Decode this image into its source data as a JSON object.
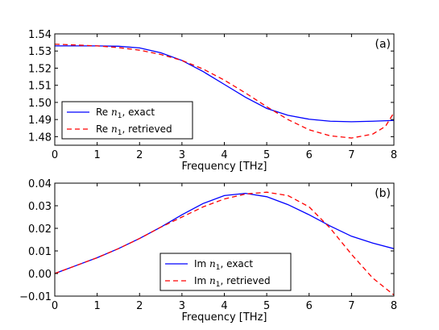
{
  "chart_data": [
    {
      "type": "line",
      "panel_label": "(a)",
      "xlabel": "Frequency [THz]",
      "ylabel": "",
      "xlim": [
        0,
        8
      ],
      "ylim": [
        1.475,
        1.54
      ],
      "xticks": [
        "0",
        "1",
        "2",
        "3",
        "4",
        "5",
        "6",
        "7",
        "8"
      ],
      "yticks": [
        "1.48",
        "1.49",
        "1.50",
        "1.51",
        "1.52",
        "1.53",
        "1.54"
      ],
      "legend_position": "lower-left",
      "grid": false,
      "series": [
        {
          "legend_prefix": "Re ",
          "legend_var": "n",
          "legend_sub": "1",
          "legend_suffix": ", exact",
          "color": "#0000ff",
          "style": "solid",
          "x": [
            0,
            0.5,
            1,
            1.5,
            2,
            2.5,
            3,
            3.5,
            4,
            4.5,
            5,
            5.5,
            6,
            6.5,
            7,
            7.5,
            8
          ],
          "y": [
            1.533,
            1.533,
            1.533,
            1.5328,
            1.5318,
            1.529,
            1.5245,
            1.518,
            1.5105,
            1.503,
            1.4965,
            1.4925,
            1.4902,
            1.489,
            1.4887,
            1.489,
            1.4895
          ]
        },
        {
          "legend_prefix": "Re ",
          "legend_var": "n",
          "legend_sub": "1",
          "legend_suffix": ", retrieved",
          "color": "#ff0000",
          "style": "dashed",
          "x": [
            0,
            0.5,
            1,
            1.5,
            2,
            2.5,
            3,
            3.5,
            4,
            4.5,
            5,
            5.5,
            6,
            6.5,
            7,
            7.5,
            7.8,
            8
          ],
          "y": [
            1.534,
            1.5335,
            1.533,
            1.532,
            1.5305,
            1.528,
            1.5245,
            1.5195,
            1.513,
            1.5055,
            1.4975,
            1.49,
            1.484,
            1.4805,
            1.4792,
            1.4815,
            1.486,
            1.494
          ]
        }
      ]
    },
    {
      "type": "line",
      "panel_label": "(b)",
      "xlabel": "Frequency [THz]",
      "ylabel": "",
      "xlim": [
        0,
        8
      ],
      "ylim": [
        -0.01,
        0.04
      ],
      "xticks": [
        "0",
        "1",
        "2",
        "3",
        "4",
        "5",
        "6",
        "7",
        "8"
      ],
      "yticks": [
        "−0.01",
        "0.00",
        "0.01",
        "0.02",
        "0.03",
        "0.04"
      ],
      "legend_position": "lower-center",
      "grid": false,
      "series": [
        {
          "legend_prefix": "Im ",
          "legend_var": "n",
          "legend_sub": "1",
          "legend_suffix": ", exact",
          "color": "#0000ff",
          "style": "solid",
          "x": [
            0,
            0.5,
            1,
            1.5,
            2,
            2.5,
            3,
            3.5,
            4,
            4.5,
            5,
            5.5,
            6,
            6.5,
            7,
            7.5,
            8
          ],
          "y": [
            0.0,
            0.0035,
            0.007,
            0.011,
            0.0155,
            0.0205,
            0.026,
            0.031,
            0.0345,
            0.0355,
            0.034,
            0.0305,
            0.026,
            0.021,
            0.0165,
            0.0135,
            0.011
          ]
        },
        {
          "legend_prefix": "Im ",
          "legend_var": "n",
          "legend_sub": "1",
          "legend_suffix": ", retrieved",
          "color": "#ff0000",
          "style": "dashed",
          "x": [
            0,
            0.5,
            1,
            1.5,
            2,
            2.5,
            3,
            3.5,
            4,
            4.5,
            5,
            5.5,
            6,
            6.5,
            7,
            7.5,
            8
          ],
          "y": [
            0.0,
            0.0035,
            0.007,
            0.011,
            0.0155,
            0.0205,
            0.025,
            0.0295,
            0.033,
            0.0352,
            0.036,
            0.0345,
            0.0295,
            0.02,
            0.0085,
            -0.002,
            -0.0095
          ]
        }
      ]
    }
  ]
}
